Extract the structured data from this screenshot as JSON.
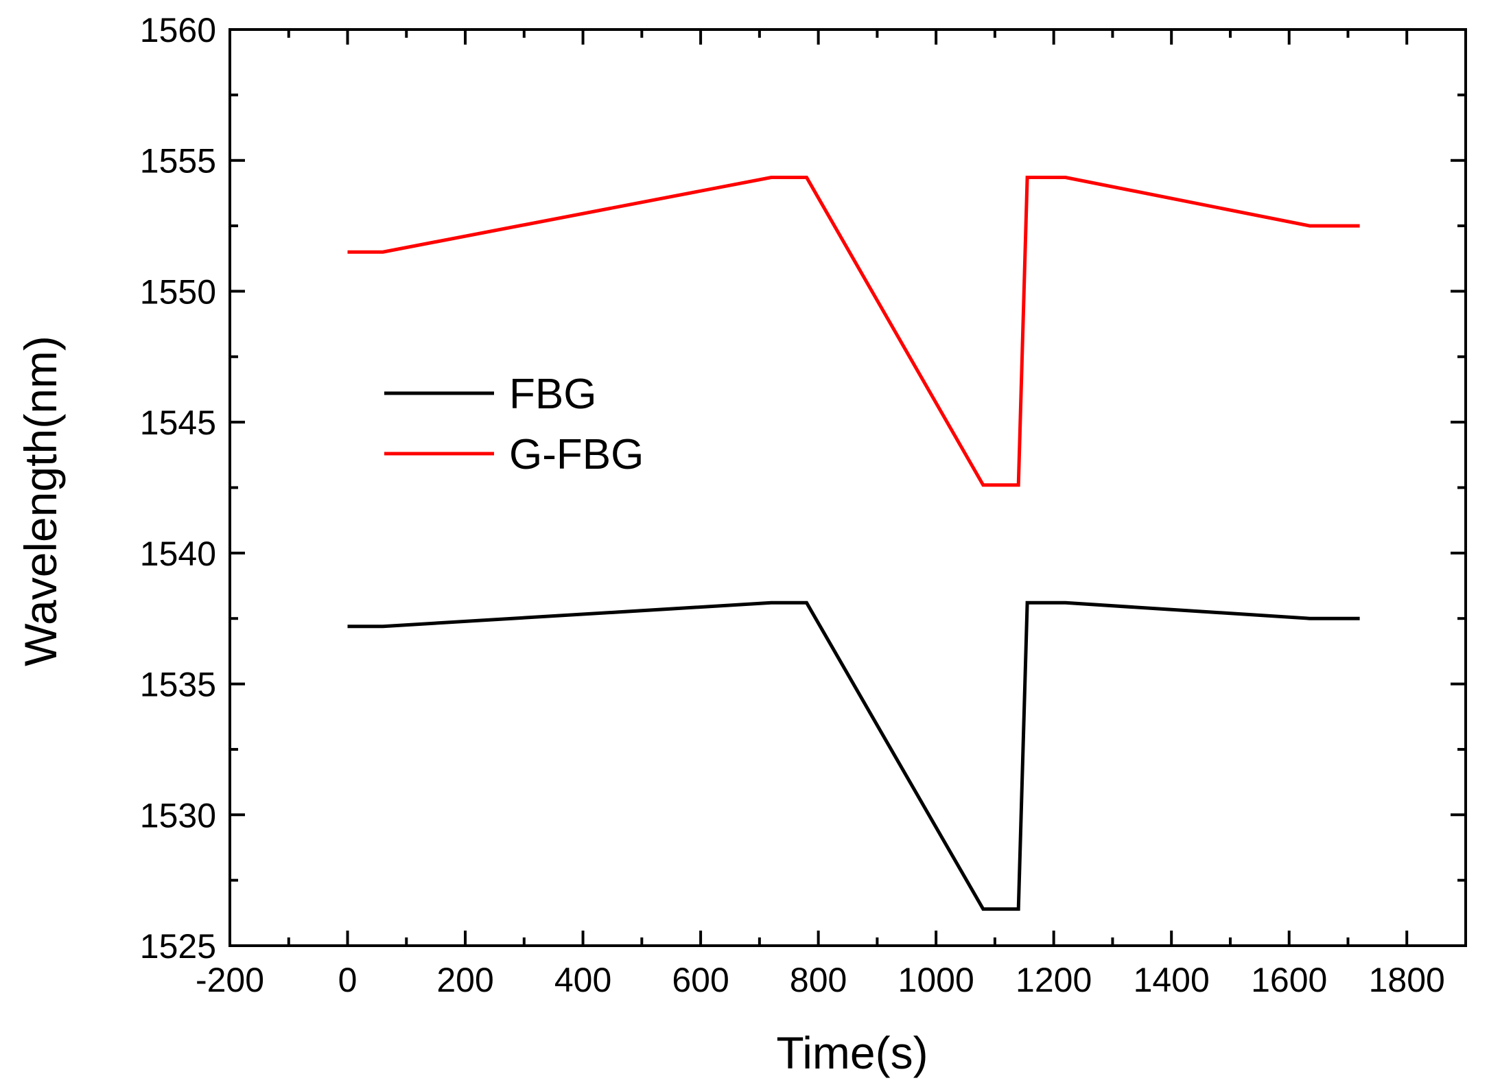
{
  "chart_data": {
    "type": "line",
    "title": "",
    "xlabel": "Time(s)",
    "ylabel": "Wavelength(nm)",
    "xlim": [
      -200,
      1900
    ],
    "ylim": [
      1525,
      1560
    ],
    "xticks": [
      -200,
      0,
      200,
      400,
      600,
      800,
      1000,
      1200,
      1400,
      1600,
      1800
    ],
    "yticks": [
      1525,
      1530,
      1535,
      1540,
      1545,
      1550,
      1555,
      1560
    ],
    "xtick_labels": [
      "-200",
      "0",
      "200",
      "400",
      "600",
      "800",
      "1000",
      "1200",
      "1400",
      "1600",
      "1800"
    ],
    "ytick_labels": [
      "1525",
      "1530",
      "1535",
      "1540",
      "1545",
      "1550",
      "1555",
      "1560"
    ],
    "x_minor_step": 100,
    "y_minor_step": 2.5,
    "grid": false,
    "legend_position": "center-left",
    "series": [
      {
        "name": "FBG",
        "color": "#000000",
        "x": [
          0,
          60,
          720,
          780,
          1080,
          1140,
          1155,
          1220,
          1635,
          1720
        ],
        "y": [
          1537.2,
          1537.2,
          1538.1,
          1538.1,
          1526.4,
          1526.4,
          1538.1,
          1538.1,
          1537.5,
          1537.5
        ]
      },
      {
        "name": "G-FBG",
        "color": "#ff0000",
        "x": [
          0,
          60,
          720,
          780,
          1080,
          1140,
          1155,
          1220,
          1635,
          1720
        ],
        "y": [
          1551.5,
          1551.5,
          1554.35,
          1554.35,
          1542.6,
          1542.6,
          1554.35,
          1554.35,
          1552.5,
          1552.5
        ]
      }
    ]
  }
}
